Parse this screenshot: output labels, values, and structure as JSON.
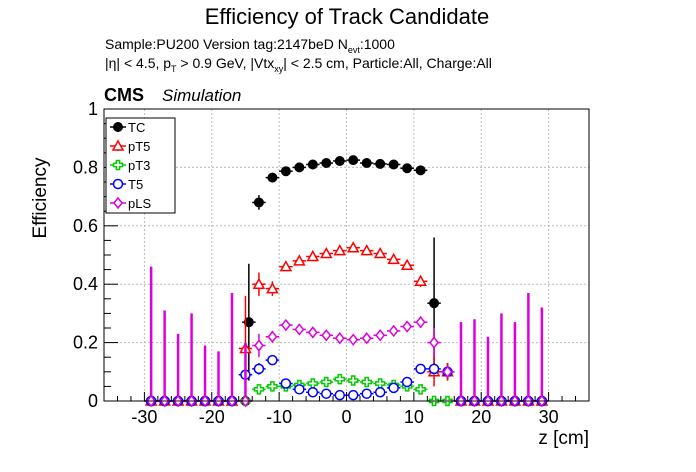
{
  "header": {
    "title": "Efficiency of Track Candidate",
    "line1_main": "Sample:PU200   Version tag:2147beD  N",
    "line1_sub": "evt",
    "line1_end": ":1000",
    "line2_a": "|η| < 4.5, p",
    "line2_a_sub": "T",
    "line2_b": " > 0.9 GeV, |Vtx",
    "line2_b_sub": "xy",
    "line2_c": "| < 2.5 cm, Particle:All, Charge:All",
    "cms": "CMS",
    "simulation": "Simulation"
  },
  "chart_data": {
    "type": "scatter",
    "title": "Efficiency of Track Candidate",
    "xlabel": "z [cm]",
    "ylabel": "Efficiency",
    "xlim": [
      -36,
      36
    ],
    "ylim": [
      0,
      1.0
    ],
    "xticks": [
      -30,
      -20,
      -10,
      0,
      10,
      20,
      30
    ],
    "yticks": [
      0,
      0.2,
      0.4,
      0.6,
      0.8,
      1
    ],
    "ytick_labels": [
      "0",
      "0.2",
      "0.4",
      "0.6",
      "0.8",
      "1"
    ],
    "grid": true,
    "legend_position": "top-left",
    "series": [
      {
        "name": "TC",
        "color": "#000000",
        "marker": "filled-circle",
        "points": [
          {
            "x": -29,
            "y": 0,
            "yerr": 0.005
          },
          {
            "x": -27,
            "y": 0,
            "yerr": 0.005
          },
          {
            "x": -25,
            "y": 0,
            "yerr": 0.005
          },
          {
            "x": -23,
            "y": 0,
            "yerr": 0.005
          },
          {
            "x": -21,
            "y": 0,
            "yerr": 0.005
          },
          {
            "x": -19,
            "y": 0,
            "yerr": 0.005
          },
          {
            "x": -17,
            "y": 0,
            "yerr": 0.005
          },
          {
            "x": -15,
            "y": 0,
            "yerr": 0.005
          },
          {
            "x": -14.5,
            "y": 0.27,
            "yerr": 0.2
          },
          {
            "x": -13,
            "y": 0.68,
            "yerr": 0.025
          },
          {
            "x": -11,
            "y": 0.765,
            "yerr": 0.015
          },
          {
            "x": -9,
            "y": 0.787,
            "yerr": 0.008
          },
          {
            "x": -7,
            "y": 0.8,
            "yerr": 0.006
          },
          {
            "x": -5,
            "y": 0.81,
            "yerr": 0.005
          },
          {
            "x": -3,
            "y": 0.815,
            "yerr": 0.005
          },
          {
            "x": -1,
            "y": 0.822,
            "yerr": 0.005
          },
          {
            "x": 1,
            "y": 0.825,
            "yerr": 0.005
          },
          {
            "x": 3,
            "y": 0.815,
            "yerr": 0.005
          },
          {
            "x": 5,
            "y": 0.812,
            "yerr": 0.005
          },
          {
            "x": 7,
            "y": 0.81,
            "yerr": 0.005
          },
          {
            "x": 9,
            "y": 0.797,
            "yerr": 0.006
          },
          {
            "x": 11,
            "y": 0.79,
            "yerr": 0.012
          },
          {
            "x": 13,
            "y": 0.335,
            "yerr": 0.225
          },
          {
            "x": 15,
            "y": 0.1,
            "yerr": 0.03
          },
          {
            "x": 17,
            "y": 0,
            "yerr": 0.005
          },
          {
            "x": 19,
            "y": 0,
            "yerr": 0.005
          },
          {
            "x": 21,
            "y": 0,
            "yerr": 0.005
          },
          {
            "x": 23,
            "y": 0,
            "yerr": 0.005
          },
          {
            "x": 25,
            "y": 0,
            "yerr": 0.005
          },
          {
            "x": 27,
            "y": 0,
            "yerr": 0.005
          },
          {
            "x": 29,
            "y": 0,
            "yerr": 0.005
          }
        ]
      },
      {
        "name": "pT5",
        "color": "#ff0000",
        "marker": "open-triangle",
        "points": [
          {
            "x": -29,
            "y": 0,
            "yerr": 0.005
          },
          {
            "x": -27,
            "y": 0,
            "yerr": 0.005
          },
          {
            "x": -25,
            "y": 0,
            "yerr": 0.005
          },
          {
            "x": -23,
            "y": 0,
            "yerr": 0.005
          },
          {
            "x": -21,
            "y": 0,
            "yerr": 0.005
          },
          {
            "x": -19,
            "y": 0,
            "yerr": 0.005
          },
          {
            "x": -17,
            "y": 0,
            "yerr": 0.005
          },
          {
            "x": -15,
            "y": 0.18,
            "yerr": 0.18
          },
          {
            "x": -13,
            "y": 0.4,
            "yerr": 0.04
          },
          {
            "x": -11,
            "y": 0.385,
            "yerr": 0.025
          },
          {
            "x": -9,
            "y": 0.46,
            "yerr": 0.012
          },
          {
            "x": -7,
            "y": 0.48,
            "yerr": 0.008
          },
          {
            "x": -5,
            "y": 0.495,
            "yerr": 0.007
          },
          {
            "x": -3,
            "y": 0.505,
            "yerr": 0.006
          },
          {
            "x": -1,
            "y": 0.515,
            "yerr": 0.006
          },
          {
            "x": 1,
            "y": 0.525,
            "yerr": 0.006
          },
          {
            "x": 3,
            "y": 0.515,
            "yerr": 0.006
          },
          {
            "x": 5,
            "y": 0.505,
            "yerr": 0.006
          },
          {
            "x": 7,
            "y": 0.485,
            "yerr": 0.008
          },
          {
            "x": 9,
            "y": 0.465,
            "yerr": 0.01
          },
          {
            "x": 11,
            "y": 0.41,
            "yerr": 0.02
          },
          {
            "x": 13,
            "y": 0.1,
            "yerr": 0.05
          },
          {
            "x": 15,
            "y": 0.1,
            "yerr": 0.03
          },
          {
            "x": 17,
            "y": 0,
            "yerr": 0.005
          },
          {
            "x": 19,
            "y": 0,
            "yerr": 0.005
          },
          {
            "x": 21,
            "y": 0,
            "yerr": 0.005
          },
          {
            "x": 23,
            "y": 0,
            "yerr": 0.005
          },
          {
            "x": 25,
            "y": 0,
            "yerr": 0.005
          },
          {
            "x": 27,
            "y": 0,
            "yerr": 0.005
          },
          {
            "x": 29,
            "y": 0,
            "yerr": 0.005
          }
        ]
      },
      {
        "name": "pT3",
        "color": "#00cc00",
        "marker": "open-cross",
        "points": [
          {
            "x": -29,
            "y": 0,
            "yerr": 0.005
          },
          {
            "x": -27,
            "y": 0,
            "yerr": 0.005
          },
          {
            "x": -25,
            "y": 0,
            "yerr": 0.005
          },
          {
            "x": -23,
            "y": 0,
            "yerr": 0.005
          },
          {
            "x": -21,
            "y": 0,
            "yerr": 0.005
          },
          {
            "x": -19,
            "y": 0,
            "yerr": 0.005
          },
          {
            "x": -17,
            "y": 0,
            "yerr": 0.005
          },
          {
            "x": -15,
            "y": 0,
            "yerr": 0.005
          },
          {
            "x": -13,
            "y": 0.04,
            "yerr": 0.01
          },
          {
            "x": -11,
            "y": 0.05,
            "yerr": 0.01
          },
          {
            "x": -9,
            "y": 0.05,
            "yerr": 0.008
          },
          {
            "x": -7,
            "y": 0.055,
            "yerr": 0.006
          },
          {
            "x": -5,
            "y": 0.06,
            "yerr": 0.005
          },
          {
            "x": -3,
            "y": 0.065,
            "yerr": 0.005
          },
          {
            "x": -1,
            "y": 0.075,
            "yerr": 0.005
          },
          {
            "x": 1,
            "y": 0.07,
            "yerr": 0.005
          },
          {
            "x": 3,
            "y": 0.065,
            "yerr": 0.005
          },
          {
            "x": 5,
            "y": 0.06,
            "yerr": 0.005
          },
          {
            "x": 7,
            "y": 0.055,
            "yerr": 0.006
          },
          {
            "x": 9,
            "y": 0.05,
            "yerr": 0.008
          },
          {
            "x": 11,
            "y": 0.04,
            "yerr": 0.01
          },
          {
            "x": 13,
            "y": 0,
            "yerr": 0.005
          },
          {
            "x": 15,
            "y": 0,
            "yerr": 0.005
          },
          {
            "x": 17,
            "y": 0,
            "yerr": 0.005
          },
          {
            "x": 19,
            "y": 0,
            "yerr": 0.005
          },
          {
            "x": 21,
            "y": 0,
            "yerr": 0.005
          },
          {
            "x": 23,
            "y": 0,
            "yerr": 0.005
          },
          {
            "x": 25,
            "y": 0,
            "yerr": 0.005
          },
          {
            "x": 27,
            "y": 0,
            "yerr": 0.005
          },
          {
            "x": 29,
            "y": 0,
            "yerr": 0.005
          }
        ]
      },
      {
        "name": "T5",
        "color": "#0000ff",
        "marker": "open-circle",
        "points": [
          {
            "x": -29,
            "y": 0,
            "yerr": 0.005
          },
          {
            "x": -27,
            "y": 0,
            "yerr": 0.005
          },
          {
            "x": -25,
            "y": 0,
            "yerr": 0.005
          },
          {
            "x": -23,
            "y": 0,
            "yerr": 0.005
          },
          {
            "x": -21,
            "y": 0,
            "yerr": 0.005
          },
          {
            "x": -19,
            "y": 0,
            "yerr": 0.005
          },
          {
            "x": -17,
            "y": 0,
            "yerr": 0.005
          },
          {
            "x": -15,
            "y": 0.09,
            "yerr": 0.02
          },
          {
            "x": -13,
            "y": 0.11,
            "yerr": 0.02
          },
          {
            "x": -11,
            "y": 0.14,
            "yerr": 0.015
          },
          {
            "x": -9,
            "y": 0.06,
            "yerr": 0.008
          },
          {
            "x": -7,
            "y": 0.04,
            "yerr": 0.006
          },
          {
            "x": -5,
            "y": 0.03,
            "yerr": 0.005
          },
          {
            "x": -3,
            "y": 0.025,
            "yerr": 0.004
          },
          {
            "x": -1,
            "y": 0.02,
            "yerr": 0.004
          },
          {
            "x": 1,
            "y": 0.02,
            "yerr": 0.004
          },
          {
            "x": 3,
            "y": 0.025,
            "yerr": 0.004
          },
          {
            "x": 5,
            "y": 0.03,
            "yerr": 0.005
          },
          {
            "x": 7,
            "y": 0.045,
            "yerr": 0.006
          },
          {
            "x": 9,
            "y": 0.065,
            "yerr": 0.008
          },
          {
            "x": 11,
            "y": 0.11,
            "yerr": 0.015
          },
          {
            "x": 13,
            "y": 0.11,
            "yerr": 0.02
          },
          {
            "x": 15,
            "y": 0.1,
            "yerr": 0.02
          },
          {
            "x": 17,
            "y": 0,
            "yerr": 0.005
          },
          {
            "x": 19,
            "y": 0,
            "yerr": 0.005
          },
          {
            "x": 21,
            "y": 0,
            "yerr": 0.005
          },
          {
            "x": 23,
            "y": 0,
            "yerr": 0.005
          },
          {
            "x": 25,
            "y": 0,
            "yerr": 0.005
          },
          {
            "x": 27,
            "y": 0,
            "yerr": 0.005
          },
          {
            "x": 29,
            "y": 0,
            "yerr": 0.005
          }
        ]
      },
      {
        "name": "pLS",
        "color": "#dd00dd",
        "marker": "open-diamond",
        "points": [
          {
            "x": -29,
            "y": 0,
            "yup": 0.46
          },
          {
            "x": -27,
            "y": 0,
            "yup": 0.31
          },
          {
            "x": -25,
            "y": 0,
            "yup": 0.23
          },
          {
            "x": -23,
            "y": 0,
            "yup": 0.3
          },
          {
            "x": -21,
            "y": 0,
            "yup": 0.19
          },
          {
            "x": -19,
            "y": 0,
            "yup": 0.17
          },
          {
            "x": -17,
            "y": 0,
            "yup": 0.37
          },
          {
            "x": -15,
            "y": 0,
            "yup": 0.2
          },
          {
            "x": -13,
            "y": 0.19,
            "yerr": 0.04
          },
          {
            "x": -11,
            "y": 0.22,
            "yerr": 0.02
          },
          {
            "x": -9,
            "y": 0.26,
            "yerr": 0.012
          },
          {
            "x": -7,
            "y": 0.245,
            "yerr": 0.008
          },
          {
            "x": -5,
            "y": 0.235,
            "yerr": 0.006
          },
          {
            "x": -3,
            "y": 0.225,
            "yerr": 0.005
          },
          {
            "x": -1,
            "y": 0.215,
            "yerr": 0.005
          },
          {
            "x": 1,
            "y": 0.21,
            "yerr": 0.005
          },
          {
            "x": 3,
            "y": 0.215,
            "yerr": 0.005
          },
          {
            "x": 5,
            "y": 0.225,
            "yerr": 0.006
          },
          {
            "x": 7,
            "y": 0.24,
            "yerr": 0.008
          },
          {
            "x": 9,
            "y": 0.255,
            "yerr": 0.012
          },
          {
            "x": 11,
            "y": 0.27,
            "yerr": 0.02
          },
          {
            "x": 13,
            "y": 0.2,
            "yerr": 0.05
          },
          {
            "x": 15,
            "y": 0.1,
            "yerr": 0.02
          },
          {
            "x": 17,
            "y": 0,
            "yup": 0.27
          },
          {
            "x": 19,
            "y": 0,
            "yup": 0.28
          },
          {
            "x": 21,
            "y": 0,
            "yup": 0.22
          },
          {
            "x": 23,
            "y": 0,
            "yup": 0.3
          },
          {
            "x": 25,
            "y": 0,
            "yup": 0.27
          },
          {
            "x": 27,
            "y": 0,
            "yup": 0.37
          },
          {
            "x": 29,
            "y": 0,
            "yup": 0.32
          }
        ]
      }
    ]
  }
}
